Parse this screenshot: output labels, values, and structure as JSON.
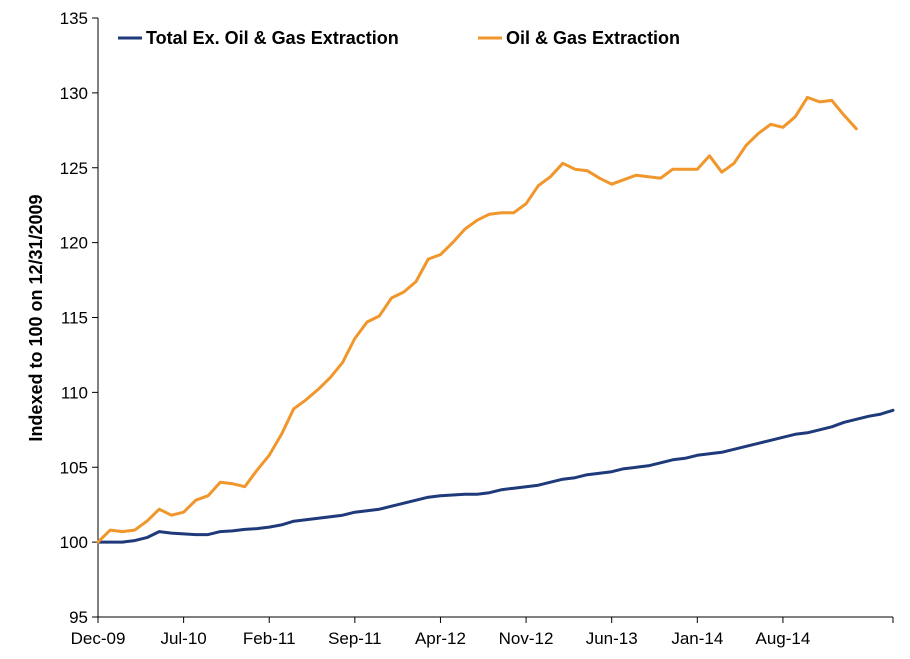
{
  "chart_data": {
    "type": "line",
    "title": "",
    "xlabel": "",
    "ylabel": "Indexed to 100 on 12/31/2009",
    "ylim": [
      95,
      135
    ],
    "yticks": [
      "95",
      "100",
      "105",
      "110",
      "115",
      "120",
      "125",
      "130",
      "135"
    ],
    "xticks": [
      "Dec-09",
      "Jul-10",
      "Feb-11",
      "Sep-11",
      "Apr-12",
      "Nov-12",
      "Jun-13",
      "Jan-14",
      "Aug-14"
    ],
    "grid": false,
    "legend_position": "top-left",
    "x_start": "Dec-09",
    "x_end": "Mar-15",
    "series": [
      {
        "name": "Total Ex. Oil & Gas Extraction",
        "color": "#1f3a7a",
        "values": [
          100.0,
          100.0,
          100.0,
          100.1,
          100.3,
          100.7,
          100.6,
          100.55,
          100.5,
          100.5,
          100.7,
          100.75,
          100.85,
          100.9,
          101.0,
          101.15,
          101.4,
          101.5,
          101.6,
          101.7,
          101.8,
          102.0,
          102.1,
          102.2,
          102.4,
          102.6,
          102.8,
          103.0,
          103.1,
          103.15,
          103.2,
          103.2,
          103.3,
          103.5,
          103.6,
          103.7,
          103.8,
          104.0,
          104.2,
          104.3,
          104.5,
          104.6,
          104.7,
          104.9,
          105.0,
          105.1,
          105.3,
          105.5,
          105.6,
          105.8,
          105.9,
          106.0,
          106.2,
          106.4,
          106.6,
          106.8,
          107.0,
          107.2,
          107.3,
          107.5,
          107.7,
          108.0,
          108.2,
          108.4,
          108.55,
          108.8
        ]
      },
      {
        "name": "Oil & Gas Extraction",
        "color": "#f0962b",
        "values": [
          100.0,
          100.8,
          100.7,
          100.8,
          101.4,
          102.2,
          101.8,
          102.0,
          102.8,
          103.1,
          104.0,
          103.9,
          103.7,
          104.8,
          105.8,
          107.2,
          108.9,
          109.5,
          110.2,
          111.0,
          112.0,
          113.6,
          114.7,
          115.1,
          116.3,
          116.7,
          117.4,
          118.9,
          119.2,
          120.0,
          120.9,
          121.5,
          121.9,
          122.0,
          122.0,
          122.6,
          123.8,
          124.4,
          125.3,
          124.9,
          124.8,
          124.3,
          123.9,
          124.2,
          124.5,
          124.4,
          124.3,
          124.9,
          124.9,
          124.9,
          125.8,
          124.7,
          125.3,
          126.5,
          127.3,
          127.9,
          127.7,
          128.4,
          129.7,
          129.4,
          129.5,
          128.5,
          127.6
        ]
      }
    ]
  }
}
